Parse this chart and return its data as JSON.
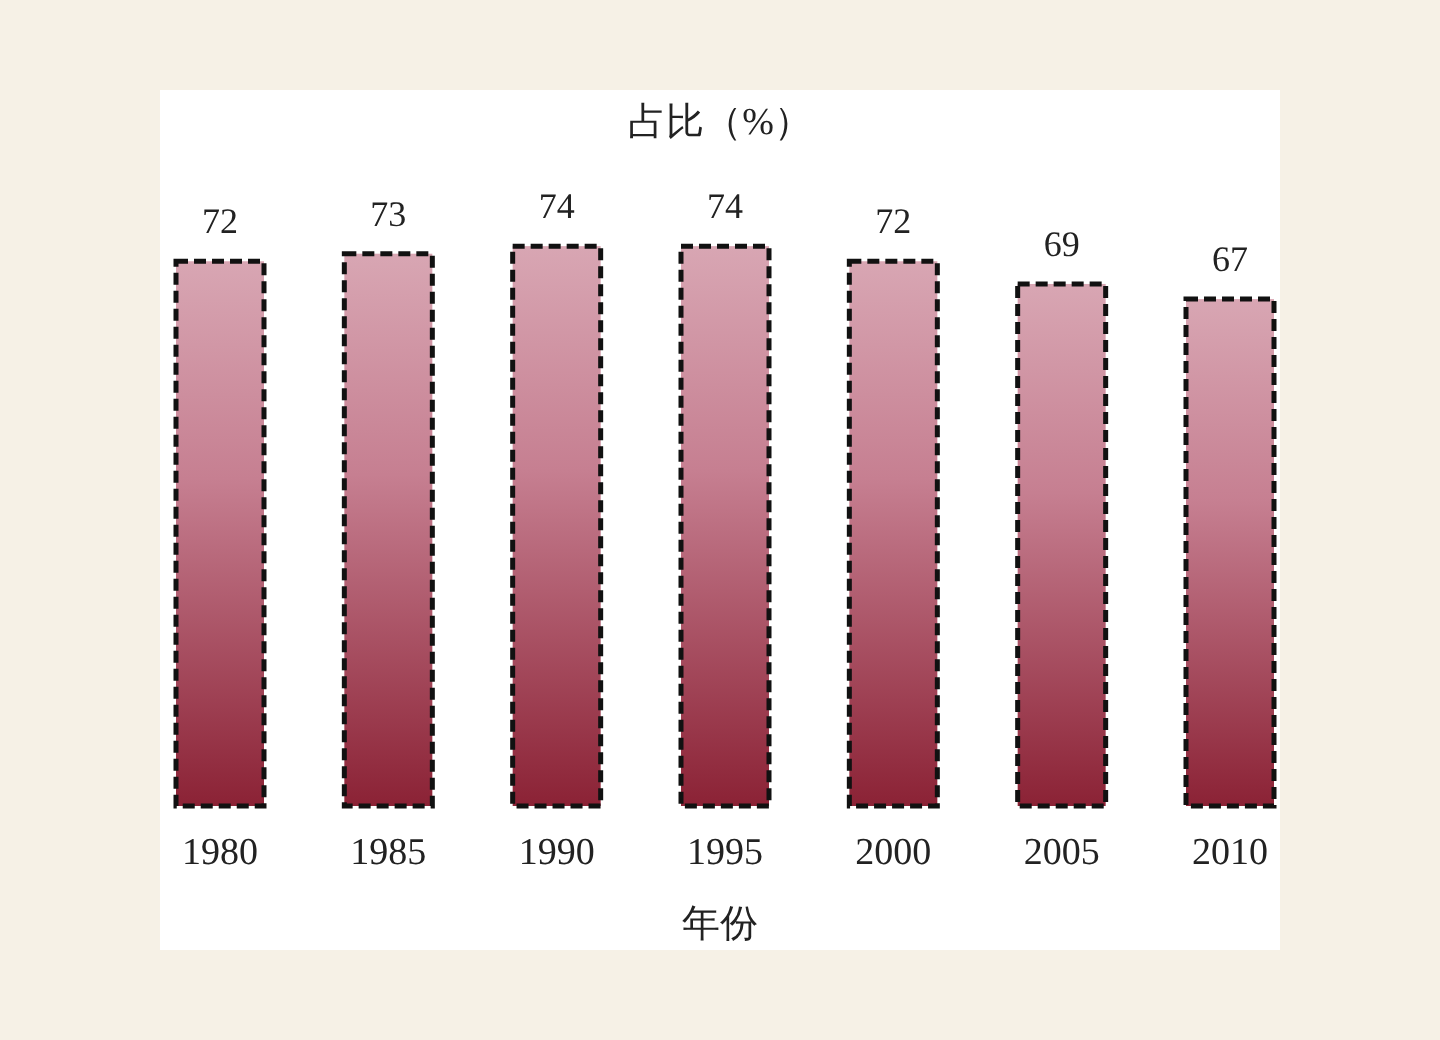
{
  "chart_data": {
    "type": "bar",
    "title": "占比（%）",
    "xlabel": "年份",
    "categories": [
      "1980",
      "1985",
      "1990",
      "1995",
      "2000",
      "2005",
      "2010"
    ],
    "values": [
      72,
      73,
      74,
      74,
      72,
      69,
      67
    ],
    "color": "#a83a56",
    "data_labels": true,
    "line_style": "dashed"
  }
}
